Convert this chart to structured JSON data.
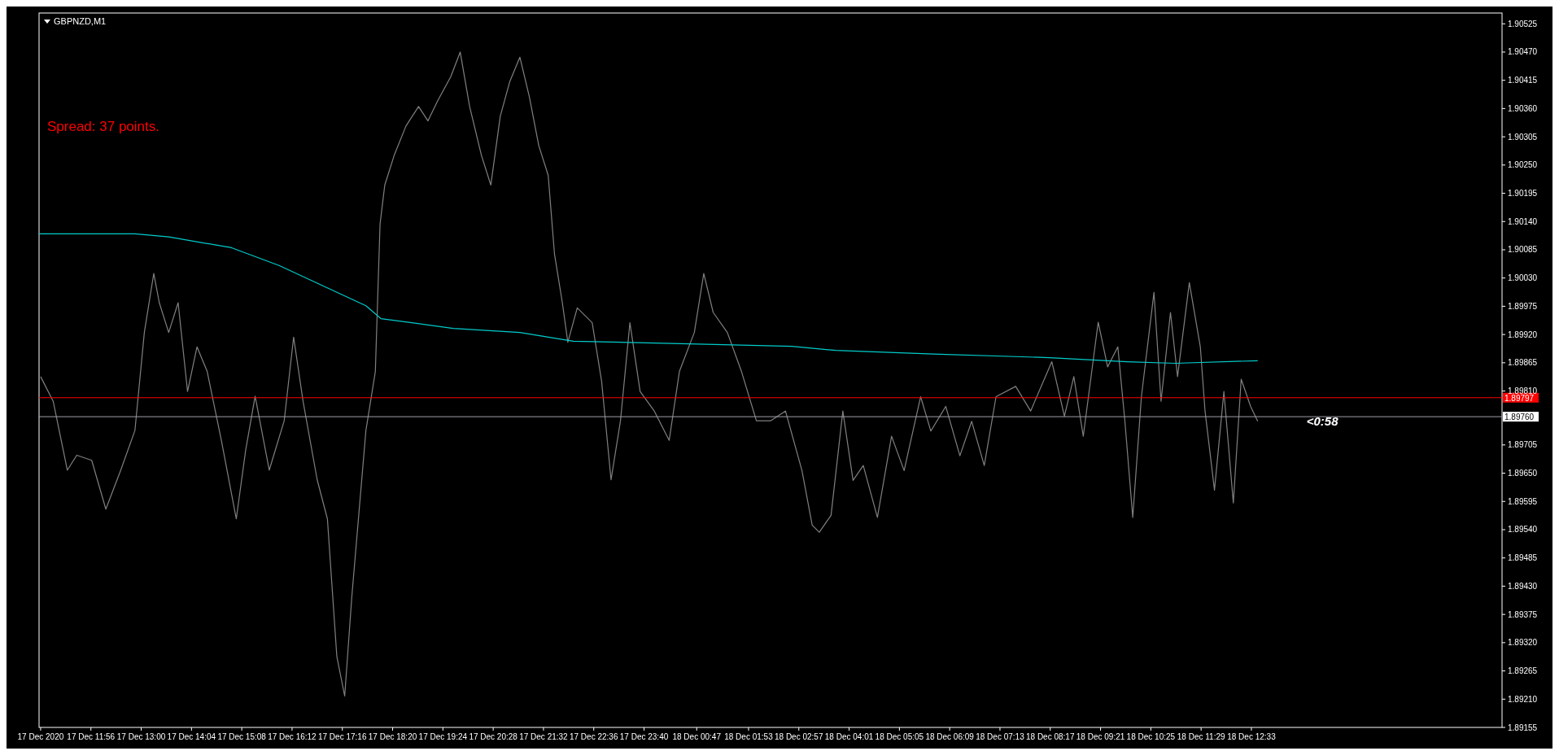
{
  "chart_data": {
    "type": "line",
    "title": "GBPNZD,M1",
    "annotations": [
      "Spread: 37 points.",
      "<0:58"
    ],
    "xlim": [
      "2020-12-17T10:50",
      "2020-12-18T17:52"
    ],
    "xticks": [
      {
        "value": "2020-12-17T10:52",
        "label": "17 Dec 2020"
      },
      {
        "value": "2020-12-17T11:56",
        "label": "17 Dec 11:56"
      },
      {
        "value": "2020-12-17T13:00",
        "label": "17 Dec 13:00"
      },
      {
        "value": "2020-12-17T14:04",
        "label": "17 Dec 14:04"
      },
      {
        "value": "2020-12-17T15:08",
        "label": "17 Dec 15:08"
      },
      {
        "value": "2020-12-17T16:12",
        "label": "17 Dec 16:12"
      },
      {
        "value": "2020-12-17T17:16",
        "label": "17 Dec 17:16"
      },
      {
        "value": "2020-12-17T18:20",
        "label": "17 Dec 18:20"
      },
      {
        "value": "2020-12-17T19:24",
        "label": "17 Dec 19:24"
      },
      {
        "value": "2020-12-17T20:28",
        "label": "17 Dec 20:28"
      },
      {
        "value": "2020-12-17T21:32",
        "label": "17 Dec 21:32"
      },
      {
        "value": "2020-12-17T22:36",
        "label": "17 Dec 22:36"
      },
      {
        "value": "2020-12-17T23:40",
        "label": "17 Dec 23:40"
      },
      {
        "value": "2020-12-18T00:47",
        "label": "18 Dec 00:47"
      },
      {
        "value": "2020-12-18T01:53",
        "label": "18 Dec 01:53"
      },
      {
        "value": "2020-12-18T02:57",
        "label": "18 Dec 02:57"
      },
      {
        "value": "2020-12-18T04:01",
        "label": "18 Dec 04:01"
      },
      {
        "value": "2020-12-18T05:05",
        "label": "18 Dec 05:05"
      },
      {
        "value": "2020-12-18T06:09",
        "label": "18 Dec 06:09"
      },
      {
        "value": "2020-12-18T07:13",
        "label": "18 Dec 07:13"
      },
      {
        "value": "2020-12-18T08:17",
        "label": "18 Dec 08:17"
      },
      {
        "value": "2020-12-18T09:21",
        "label": "18 Dec 09:21"
      },
      {
        "value": "2020-12-18T10:25",
        "label": "18 Dec 10:25"
      },
      {
        "value": "2020-12-18T11:29",
        "label": "18 Dec 11:29"
      },
      {
        "value": "2020-12-18T12:33",
        "label": "18 Dec 12:33"
      }
    ],
    "ylim": [
      1.89155,
      1.90546
    ],
    "yticks": [
      1.89155,
      {
        "value": 1.8921,
        "label": "1.89210"
      },
      1.89265,
      {
        "value": 1.8932,
        "label": "1.89320"
      },
      1.89375,
      {
        "value": 1.8943,
        "label": "1.89430"
      },
      1.89485,
      {
        "value": 1.8954,
        "label": "1.89540"
      },
      1.89595,
      {
        "value": 1.8965,
        "label": "1.89650"
      },
      1.89705,
      {
        "value": 1.8981,
        "label": "1.89810"
      },
      1.89865,
      {
        "value": 1.8992,
        "label": "1.89920"
      },
      1.89975,
      {
        "value": 1.9003,
        "label": "1.90030"
      },
      1.90085,
      {
        "value": 1.9014,
        "label": "1.90140"
      },
      1.90195,
      {
        "value": 1.9025,
        "label": "1.90250"
      },
      1.90305,
      {
        "value": 1.9036,
        "label": "1.90360"
      },
      1.90415,
      {
        "value": 1.9047,
        "label": "1.90470"
      },
      1.90525
    ],
    "ref_lines": [
      {
        "axis": "y",
        "value": 1.89797,
        "label": "1.89797",
        "color": "#ff0000"
      },
      {
        "axis": "y",
        "value": 1.8976,
        "label": "1.89760",
        "color": "#a0a0a8"
      }
    ],
    "series": [
      {
        "color": "#808080",
        "x": [
          "2020-12-17T10:52",
          "2020-12-17T11:08",
          "2020-12-17T11:26",
          "2020-12-17T11:38",
          "2020-12-17T11:57",
          "2020-12-17T12:15",
          "2020-12-17T12:34",
          "2020-12-17T12:52",
          "2020-12-17T13:04",
          "2020-12-17T13:16",
          "2020-12-17T13:23",
          "2020-12-17T13:35",
          "2020-12-17T13:47",
          "2020-12-17T13:59",
          "2020-12-17T14:11",
          "2020-12-17T14:24",
          "2020-12-17T14:42",
          "2020-12-17T15:01",
          "2020-12-17T15:13",
          "2020-12-17T15:25",
          "2020-12-17T15:43",
          "2020-12-17T16:02",
          "2020-12-17T16:14",
          "2020-12-17T16:26",
          "2020-12-17T16:44",
          "2020-12-17T16:57",
          "2020-12-17T17:09",
          "2020-12-17T17:19",
          "2020-12-17T17:28",
          "2020-12-17T17:46",
          "2020-12-17T17:58",
          "2020-12-17T18:04",
          "2020-12-17T18:10",
          "2020-12-17T18:22",
          "2020-12-17T18:37",
          "2020-12-17T18:53",
          "2020-12-17T19:05",
          "2020-12-17T19:17",
          "2020-12-17T19:34",
          "2020-12-17T19:46",
          "2020-12-17T19:58",
          "2020-12-17T20:13",
          "2020-12-17T20:25",
          "2020-12-17T20:37",
          "2020-12-17T20:49",
          "2020-12-17T21:02",
          "2020-12-17T21:14",
          "2020-12-17T21:26",
          "2020-12-17T21:38",
          "2020-12-17T21:46",
          "2020-12-17T21:56",
          "2020-12-17T22:03",
          "2020-12-17T22:15",
          "2020-12-17T22:34",
          "2020-12-17T22:46",
          "2020-12-17T22:58",
          "2020-12-17T23:10",
          "2020-12-17T23:22",
          "2020-12-17T23:35",
          "2020-12-17T23:53",
          "2020-12-18T00:12",
          "2020-12-18T00:25",
          "2020-12-18T00:44",
          "2020-12-18T00:56",
          "2020-12-18T01:08",
          "2020-12-18T01:26",
          "2020-12-18T01:44",
          "2020-12-18T02:03",
          "2020-12-18T02:21",
          "2020-12-18T02:40",
          "2020-12-18T03:01",
          "2020-12-18T03:14",
          "2020-12-18T03:23",
          "2020-12-18T03:38",
          "2020-12-18T03:53",
          "2020-12-18T04:06",
          "2020-12-18T04:19",
          "2020-12-18T04:37",
          "2020-12-18T04:55",
          "2020-12-18T05:11",
          "2020-12-18T05:32",
          "2020-12-18T05:45",
          "2020-12-18T06:04",
          "2020-12-18T06:22",
          "2020-12-18T06:37",
          "2020-12-18T06:53",
          "2020-12-18T07:08",
          "2020-12-18T07:33",
          "2020-12-18T07:52",
          "2020-12-18T08:19",
          "2020-12-18T08:35",
          "2020-12-18T08:47",
          "2020-12-18T08:59",
          "2020-12-18T09:18",
          "2020-12-18T09:30",
          "2020-12-18T09:43",
          "2020-12-18T09:52",
          "2020-12-18T10:02",
          "2020-12-18T10:13",
          "2020-12-18T10:29",
          "2020-12-18T10:38",
          "2020-12-18T10:50",
          "2020-12-18T10:59",
          "2020-12-18T11:14",
          "2020-12-18T11:28",
          "2020-12-18T11:34",
          "2020-12-18T11:46",
          "2020-12-18T11:58",
          "2020-12-18T12:10",
          "2020-12-18T12:20",
          "2020-12-18T12:32",
          "2020-12-18T12:41"
        ],
        "values": [
          1.89838,
          1.8979,
          1.89656,
          1.89685,
          1.89675,
          1.8958,
          1.89656,
          1.89733,
          1.89924,
          1.90039,
          1.89982,
          1.89924,
          1.89982,
          1.89809,
          1.89896,
          1.89848,
          1.89714,
          1.89561,
          1.89695,
          1.898,
          1.89656,
          1.89752,
          1.89915,
          1.8979,
          1.89637,
          1.89561,
          1.89293,
          1.89216,
          1.89408,
          1.89733,
          1.89848,
          1.90135,
          1.90211,
          1.90269,
          1.90326,
          1.90364,
          1.90336,
          1.90374,
          1.90422,
          1.9047,
          1.90364,
          1.90269,
          1.90211,
          1.90345,
          1.90412,
          1.9046,
          1.90383,
          1.90288,
          1.9023,
          1.90077,
          1.89982,
          1.89905,
          1.89972,
          1.89943,
          1.89829,
          1.89637,
          1.89752,
          1.89943,
          1.89809,
          1.89771,
          1.89714,
          1.89848,
          1.89924,
          1.90039,
          1.89963,
          1.89924,
          1.89848,
          1.89752,
          1.89752,
          1.89771,
          1.89655,
          1.89549,
          1.89535,
          1.89568,
          1.89771,
          1.89636,
          1.89665,
          1.89564,
          1.89722,
          1.89655,
          1.89799,
          1.89732,
          1.8978,
          1.89684,
          1.89751,
          1.89665,
          1.89799,
          1.89819,
          1.89771,
          1.89867,
          1.89761,
          1.89838,
          1.89722,
          1.89944,
          1.89857,
          1.89896,
          1.89751,
          1.89564,
          1.89799,
          1.90002,
          1.8979,
          1.89963,
          1.89838,
          1.90021,
          1.89896,
          1.89771,
          1.89617,
          1.89809,
          1.89592,
          1.89833,
          1.8978,
          1.89751
        ]
      },
      {
        "color": "#00cccc",
        "x": [
          "2020-12-17T10:50",
          "2020-12-17T12:52",
          "2020-12-17T13:35",
          "2020-12-17T14:55",
          "2020-12-17T15:56",
          "2020-12-17T16:44",
          "2020-12-17T17:46",
          "2020-12-17T18:05",
          "2020-12-17T19:37",
          "2020-12-17T21:02",
          "2020-12-17T22:10",
          "2020-12-18T00:05",
          "2020-12-18T02:48",
          "2020-12-18T03:44",
          "2020-12-18T05:48",
          "2020-12-18T08:16",
          "2020-12-18T09:55",
          "2020-12-18T10:56",
          "2020-12-18T12:41"
        ],
        "values": [
          1.90116,
          1.90116,
          1.9011,
          1.90089,
          1.90054,
          1.9002,
          1.89976,
          1.89951,
          1.89932,
          1.89924,
          1.89907,
          1.89903,
          1.89897,
          1.89889,
          1.89882,
          1.89875,
          1.89867,
          1.89864,
          1.89869
        ]
      }
    ]
  }
}
